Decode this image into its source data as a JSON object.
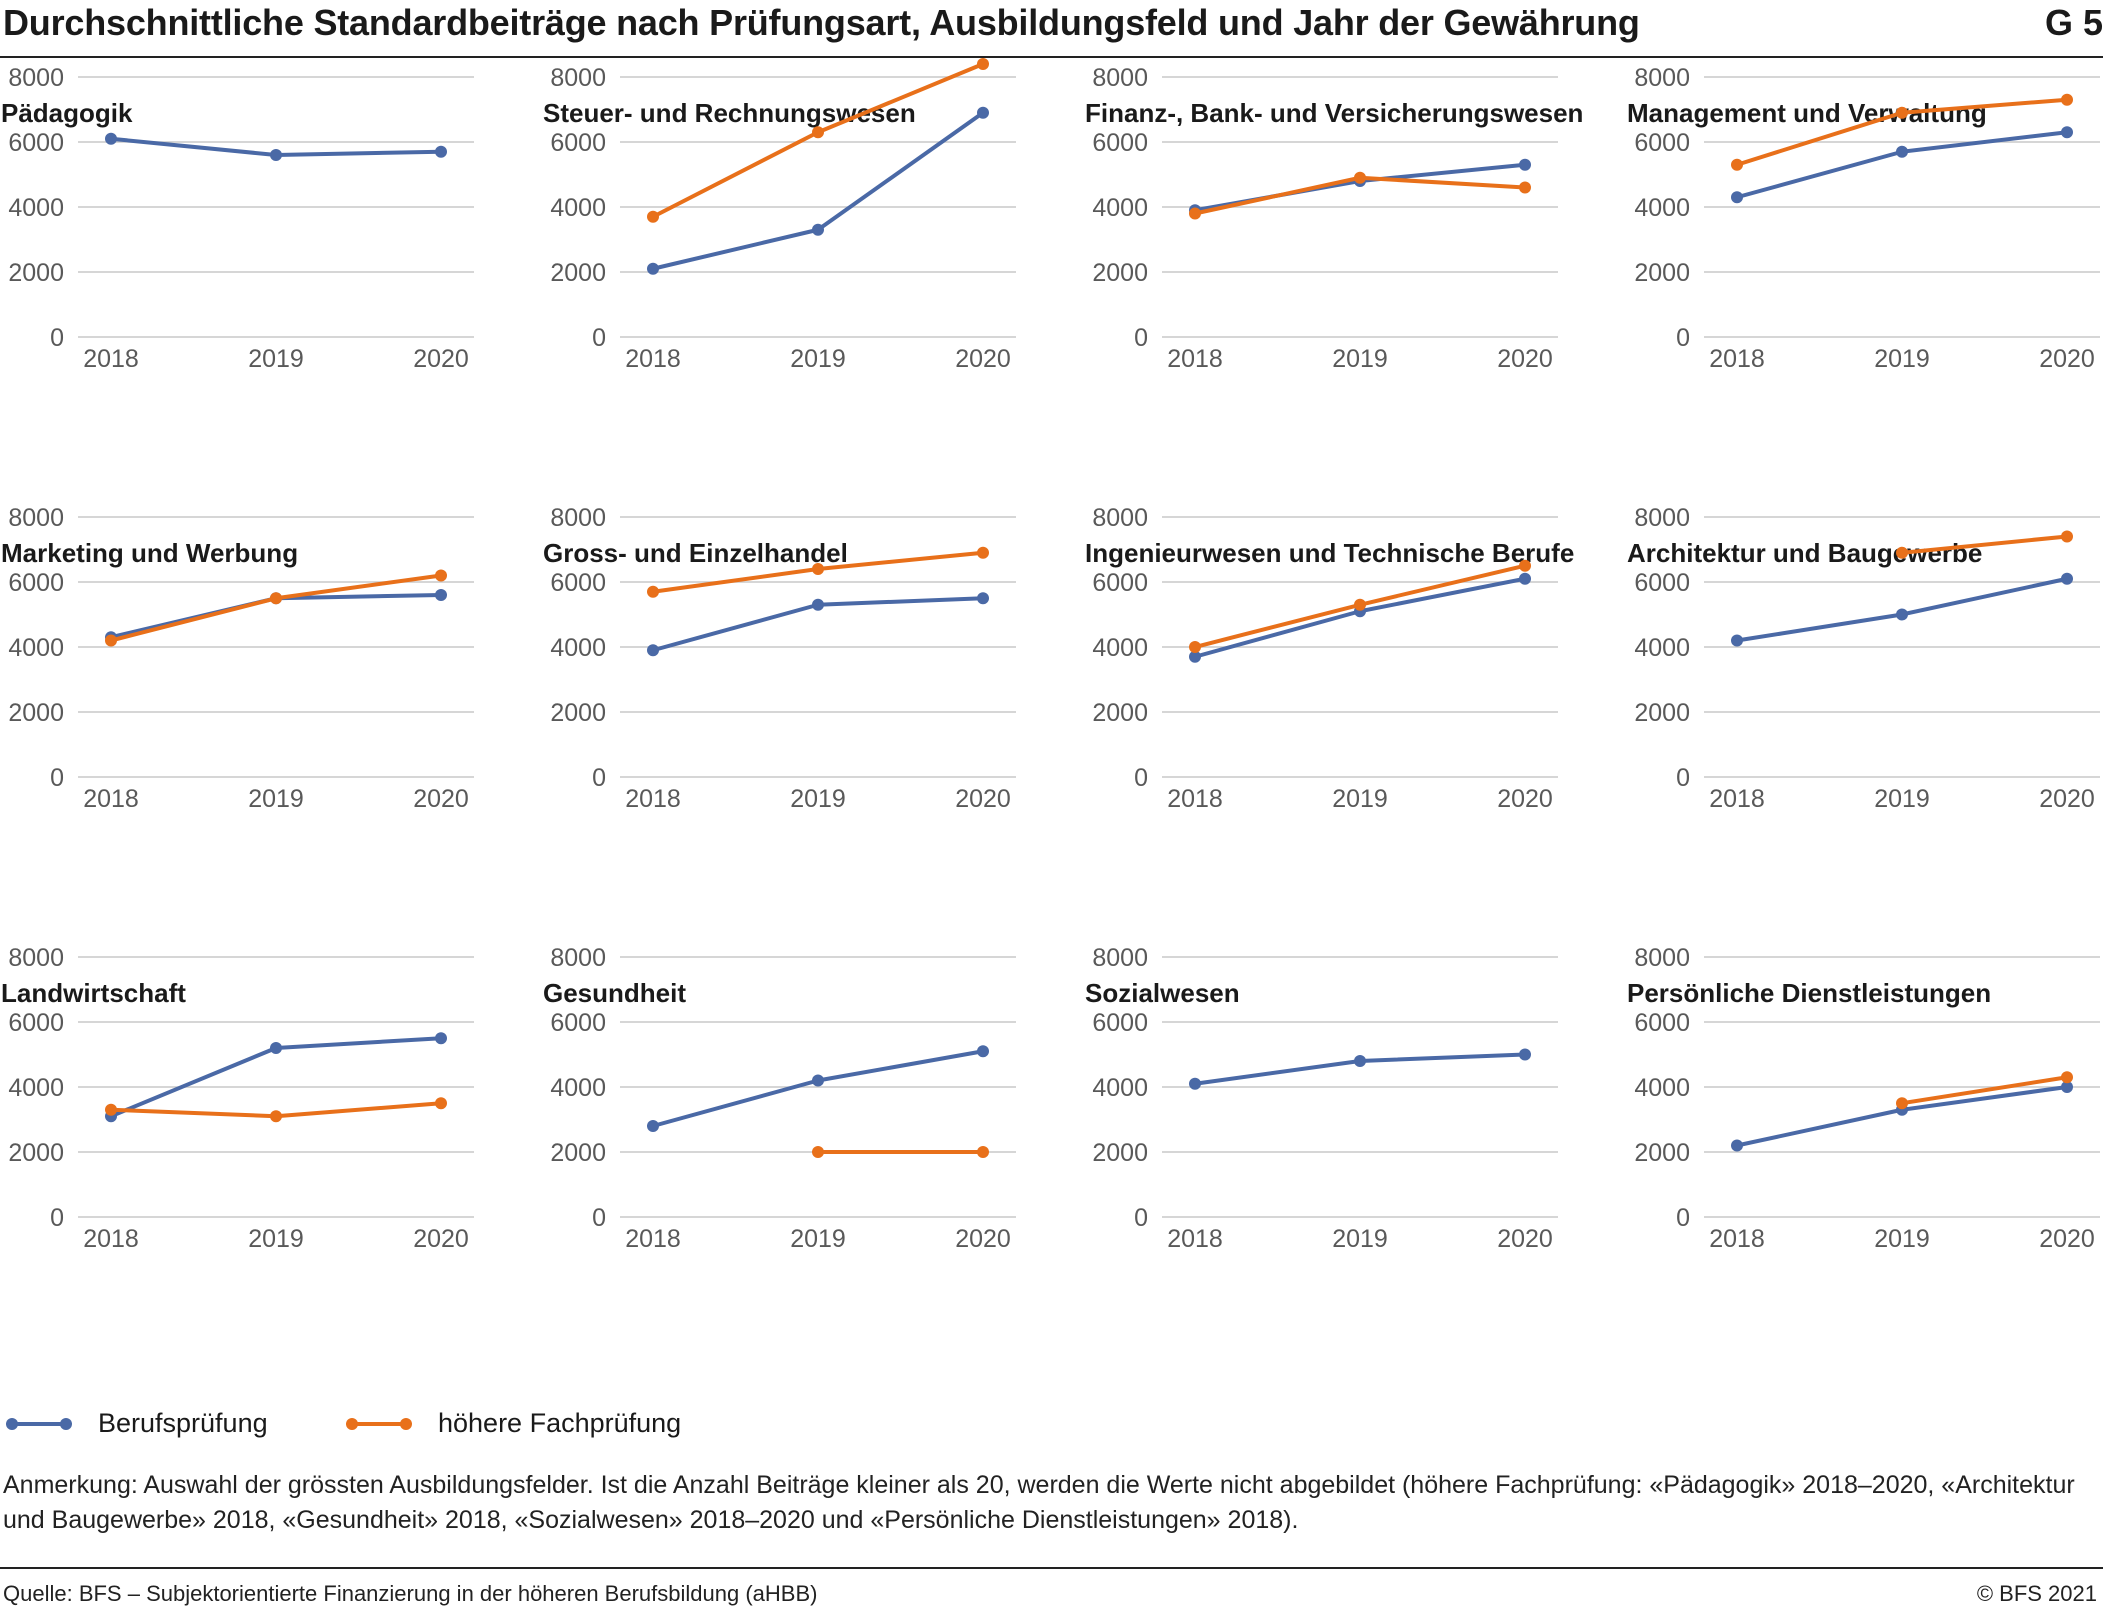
{
  "header": {
    "title": "Durchschnittliche Standardbeiträge nach Prüfungsart, Ausbildungsfeld und Jahr der Gewährung",
    "figure_number": "G 5"
  },
  "colors": {
    "berufspruefung": "#4a69a6",
    "hoehere_fachpruefung": "#e8701a",
    "gridline": "#c8c8c8",
    "axis_text": "#595959"
  },
  "legend": [
    {
      "label": "Berufsprüfung",
      "color": "#4a69a6"
    },
    {
      "label": "höhere Fachprüfung",
      "color": "#e8701a"
    }
  ],
  "chart_data": [
    {
      "type": "line",
      "title": "Pädagogik",
      "x": [
        "2018",
        "2019",
        "2020"
      ],
      "ylim": [
        0,
        8000
      ],
      "yticks": [
        "0",
        "2000",
        "4000",
        "6000",
        "8000"
      ],
      "grid": true,
      "series": [
        {
          "name": "Berufsprüfung",
          "values": [
            6100,
            5600,
            5700
          ]
        },
        {
          "name": "höhere Fachprüfung",
          "values": [
            null,
            null,
            null
          ]
        }
      ]
    },
    {
      "type": "line",
      "title": "Steuer- und Rechnungswesen",
      "x": [
        "2018",
        "2019",
        "2020"
      ],
      "ylim": [
        0,
        8000
      ],
      "yticks": [
        "0",
        "2000",
        "4000",
        "6000",
        "8000"
      ],
      "grid": true,
      "series": [
        {
          "name": "Berufsprüfung",
          "values": [
            2100,
            3300,
            6900
          ]
        },
        {
          "name": "höhere Fachprüfung",
          "values": [
            3700,
            6300,
            8400
          ]
        }
      ]
    },
    {
      "type": "line",
      "title": "Finanz-, Bank- und Versicherungswesen",
      "x": [
        "2018",
        "2019",
        "2020"
      ],
      "ylim": [
        0,
        8000
      ],
      "yticks": [
        "0",
        "2000",
        "4000",
        "6000",
        "8000"
      ],
      "grid": true,
      "series": [
        {
          "name": "Berufsprüfung",
          "values": [
            3900,
            4800,
            5300
          ]
        },
        {
          "name": "höhere Fachprüfung",
          "values": [
            3800,
            4900,
            4600
          ]
        }
      ]
    },
    {
      "type": "line",
      "title": "Management und Verwaltung",
      "x": [
        "2018",
        "2019",
        "2020"
      ],
      "ylim": [
        0,
        8000
      ],
      "yticks": [
        "0",
        "2000",
        "4000",
        "6000",
        "8000"
      ],
      "grid": true,
      "series": [
        {
          "name": "Berufsprüfung",
          "values": [
            4300,
            5700,
            6300
          ]
        },
        {
          "name": "höhere Fachprüfung",
          "values": [
            5300,
            6900,
            7300
          ]
        }
      ]
    },
    {
      "type": "line",
      "title": "Marketing und Werbung",
      "x": [
        "2018",
        "2019",
        "2020"
      ],
      "ylim": [
        0,
        8000
      ],
      "yticks": [
        "0",
        "2000",
        "4000",
        "6000",
        "8000"
      ],
      "grid": true,
      "series": [
        {
          "name": "Berufsprüfung",
          "values": [
            4300,
            5500,
            5600
          ]
        },
        {
          "name": "höhere Fachprüfung",
          "values": [
            4200,
            5500,
            6200
          ]
        }
      ]
    },
    {
      "type": "line",
      "title": "Gross- und Einzelhandel",
      "x": [
        "2018",
        "2019",
        "2020"
      ],
      "ylim": [
        0,
        8000
      ],
      "yticks": [
        "0",
        "2000",
        "4000",
        "6000",
        "8000"
      ],
      "grid": true,
      "series": [
        {
          "name": "Berufsprüfung",
          "values": [
            3900,
            5300,
            5500
          ]
        },
        {
          "name": "höhere Fachprüfung",
          "values": [
            5700,
            6400,
            6900
          ]
        }
      ]
    },
    {
      "type": "line",
      "title": "Ingenieurwesen und Technische Berufe",
      "x": [
        "2018",
        "2019",
        "2020"
      ],
      "ylim": [
        0,
        8000
      ],
      "yticks": [
        "0",
        "2000",
        "4000",
        "6000",
        "8000"
      ],
      "grid": true,
      "series": [
        {
          "name": "Berufsprüfung",
          "values": [
            3700,
            5100,
            6100
          ]
        },
        {
          "name": "höhere Fachprüfung",
          "values": [
            4000,
            5300,
            6500
          ]
        }
      ]
    },
    {
      "type": "line",
      "title": "Architektur und Baugewerbe",
      "x": [
        "2018",
        "2019",
        "2020"
      ],
      "ylim": [
        0,
        8000
      ],
      "yticks": [
        "0",
        "2000",
        "4000",
        "6000",
        "8000"
      ],
      "grid": true,
      "series": [
        {
          "name": "Berufsprüfung",
          "values": [
            4200,
            5000,
            6100
          ]
        },
        {
          "name": "höhere Fachprüfung",
          "values": [
            null,
            6900,
            7400
          ]
        }
      ]
    },
    {
      "type": "line",
      "title": "Landwirtschaft",
      "x": [
        "2018",
        "2019",
        "2020"
      ],
      "ylim": [
        0,
        8000
      ],
      "yticks": [
        "0",
        "2000",
        "4000",
        "6000",
        "8000"
      ],
      "grid": true,
      "series": [
        {
          "name": "Berufsprüfung",
          "values": [
            3100,
            5200,
            5500
          ]
        },
        {
          "name": "höhere Fachprüfung",
          "values": [
            3300,
            3100,
            3500
          ]
        }
      ]
    },
    {
      "type": "line",
      "title": "Gesundheit",
      "x": [
        "2018",
        "2019",
        "2020"
      ],
      "ylim": [
        0,
        8000
      ],
      "yticks": [
        "0",
        "2000",
        "4000",
        "6000",
        "8000"
      ],
      "grid": true,
      "series": [
        {
          "name": "Berufsprüfung",
          "values": [
            2800,
            4200,
            5100
          ]
        },
        {
          "name": "höhere Fachprüfung",
          "values": [
            null,
            2000,
            2000
          ]
        }
      ]
    },
    {
      "type": "line",
      "title": "Sozialwesen",
      "x": [
        "2018",
        "2019",
        "2020"
      ],
      "ylim": [
        0,
        8000
      ],
      "yticks": [
        "0",
        "2000",
        "4000",
        "6000",
        "8000"
      ],
      "grid": true,
      "series": [
        {
          "name": "Berufsprüfung",
          "values": [
            4100,
            4800,
            5000
          ]
        },
        {
          "name": "höhere Fachprüfung",
          "values": [
            null,
            null,
            null
          ]
        }
      ]
    },
    {
      "type": "line",
      "title": "Persönliche Dienstleistungen",
      "x": [
        "2018",
        "2019",
        "2020"
      ],
      "ylim": [
        0,
        8000
      ],
      "yticks": [
        "0",
        "2000",
        "4000",
        "6000",
        "8000"
      ],
      "grid": true,
      "series": [
        {
          "name": "Berufsprüfung",
          "values": [
            2200,
            3300,
            4000
          ]
        },
        {
          "name": "höhere Fachprüfung",
          "values": [
            null,
            3500,
            4300
          ]
        }
      ]
    }
  ],
  "footer": {
    "note": "Anmerkung: Auswahl der grössten Ausbildungsfelder. Ist die Anzahl Beiträge kleiner als 20, werden die Werte nicht abgebildet (höhere Fachprüfung: «Pädagogik» 2018–2020, «Architektur und Baugewerbe» 2018, «Gesundheit» 2018, «Sozialwesen» 2018–2020 und «Persönliche Dienstleistungen» 2018).",
    "source": "Quelle: BFS – Subjektorientierte Finanzierung in der höheren Berufsbildung (aHBB)",
    "copyright": "© BFS 2021"
  }
}
